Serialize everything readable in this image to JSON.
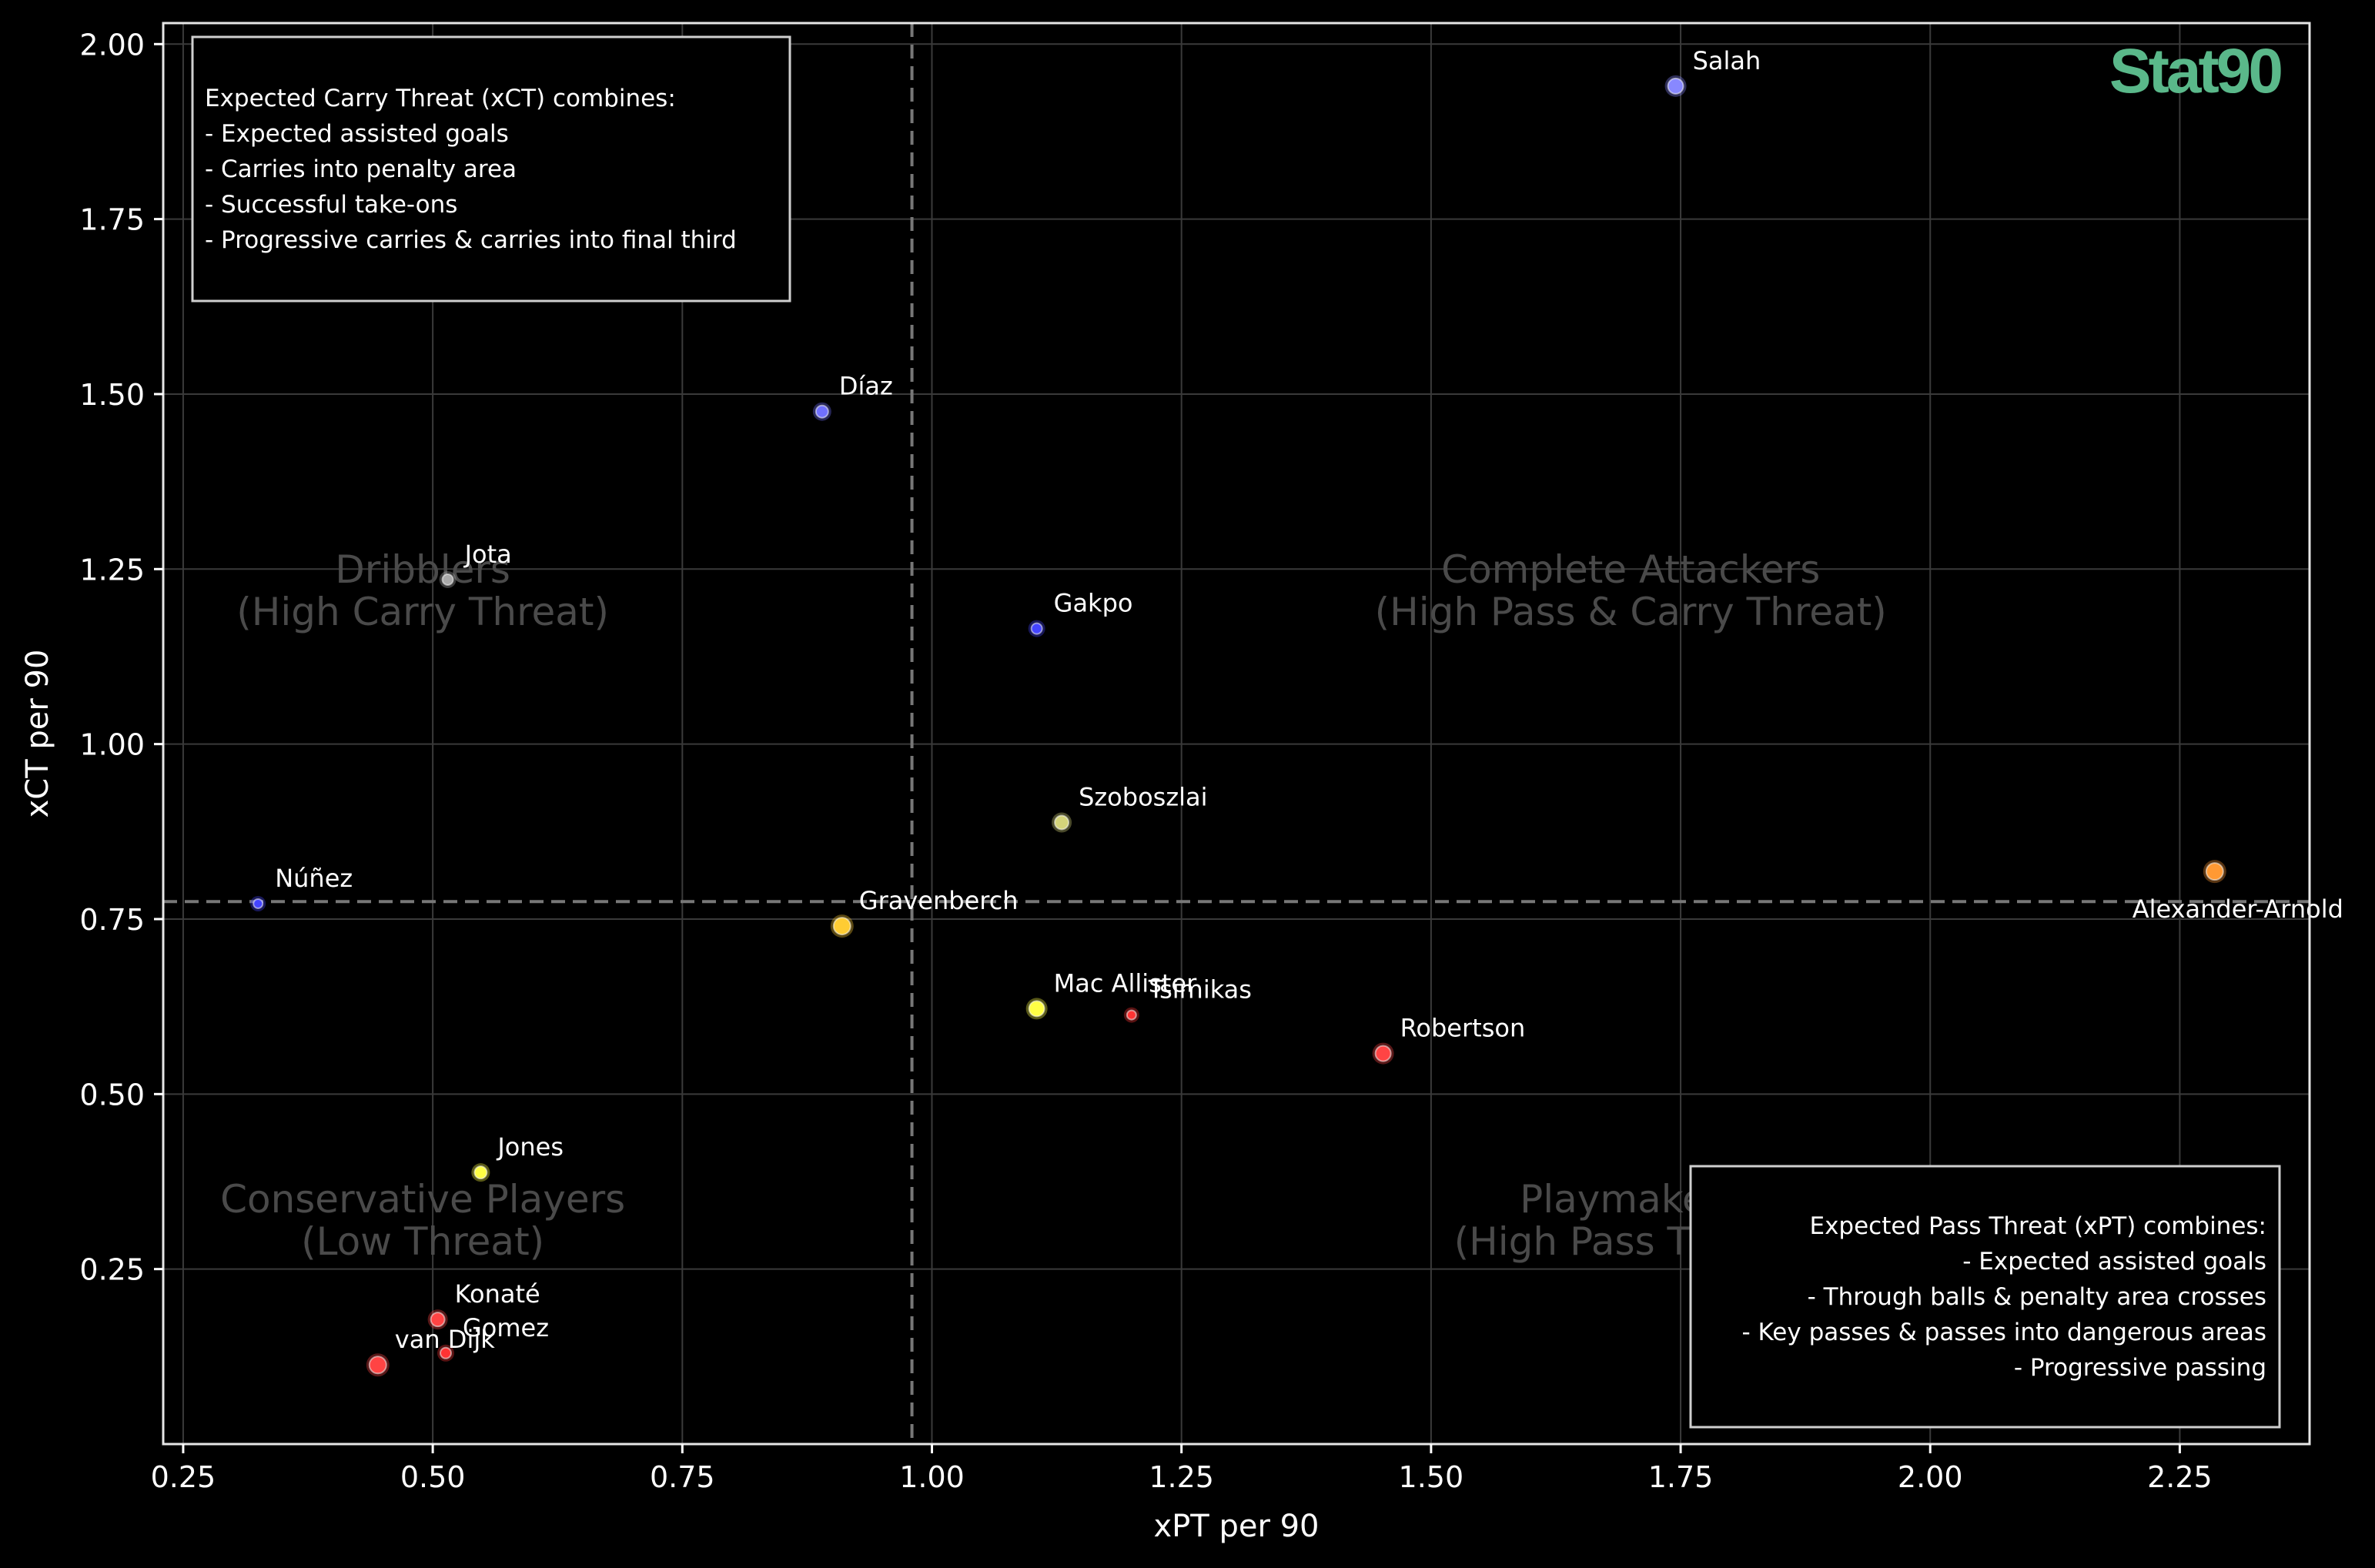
{
  "brand": "Stat90",
  "chart_data": {
    "type": "scatter",
    "xlabel": "xPT per 90",
    "ylabel": "xCT per 90",
    "xlim": [
      0.23,
      2.38
    ],
    "ylim": [
      0.0,
      2.03
    ],
    "xticks": [
      "0.25",
      "0.50",
      "0.75",
      "1.00",
      "1.25",
      "1.50",
      "1.75",
      "2.00",
      "2.25"
    ],
    "yticks": [
      "0.25",
      "0.50",
      "0.75",
      "1.00",
      "1.25",
      "1.50",
      "1.75",
      "2.00"
    ],
    "grid": true,
    "reference_lines": {
      "x": 0.98,
      "y": 0.775
    },
    "quadrants": [
      {
        "label": [
          "Dribblers",
          "(High Carry Threat)"
        ],
        "x": 0.49,
        "y": 1.2
      },
      {
        "label": [
          "Complete Attackers",
          "(High Pass & Carry Threat)"
        ],
        "x": 1.7,
        "y": 1.2
      },
      {
        "label": [
          "Conservative Players",
          "(Low Threat)"
        ],
        "x": 0.49,
        "y": 0.3
      },
      {
        "label": [
          "Playmakers",
          "(High Pass Threat)"
        ],
        "x": 1.7,
        "y": 0.3
      }
    ],
    "points": [
      {
        "name": "Salah",
        "x": 1.745,
        "y": 1.94,
        "color": "#8888ff",
        "size": 10
      },
      {
        "name": "Díaz",
        "x": 0.89,
        "y": 1.475,
        "color": "#7070ff",
        "size": 8
      },
      {
        "name": "Jota",
        "x": 0.515,
        "y": 1.235,
        "color": "#aaaaaa",
        "size": 7
      },
      {
        "name": "Gakpo",
        "x": 1.105,
        "y": 1.165,
        "color": "#4444ff",
        "size": 7
      },
      {
        "name": "Szoboszlai",
        "x": 1.13,
        "y": 0.888,
        "color": "#d4d47a",
        "size": 9
      },
      {
        "name": "Núñez",
        "x": 0.325,
        "y": 0.772,
        "color": "#4444ff",
        "size": 6
      },
      {
        "name": "Alexander-Arnold",
        "x": 2.285,
        "y": 0.818,
        "color": "#ff9933",
        "size": 11
      },
      {
        "name": "Gravenberch",
        "x": 0.91,
        "y": 0.74,
        "color": "#ffcc33",
        "size": 11
      },
      {
        "name": "Mac Allister",
        "x": 1.105,
        "y": 0.622,
        "color": "#ffff44",
        "size": 10
      },
      {
        "name": "Tsimikas",
        "x": 1.2,
        "y": 0.613,
        "color": "#ff3333",
        "size": 6
      },
      {
        "name": "Robertson",
        "x": 1.452,
        "y": 0.558,
        "color": "#ff4444",
        "size": 10
      },
      {
        "name": "Jones",
        "x": 0.548,
        "y": 0.388,
        "color": "#ffff44",
        "size": 8
      },
      {
        "name": "Konaté",
        "x": 0.505,
        "y": 0.178,
        "color": "#ff4444",
        "size": 9
      },
      {
        "name": "Gomez",
        "x": 0.513,
        "y": 0.13,
        "color": "#ff3333",
        "size": 7
      },
      {
        "name": "van Dijk",
        "x": 0.445,
        "y": 0.113,
        "color": "#ff4444",
        "size": 11
      }
    ],
    "annotations": {
      "top_left": [
        "Expected Carry Threat (xCT) combines:",
        "- Expected assisted goals",
        "- Carries into penalty area",
        "- Successful take-ons",
        "- Progressive carries & carries into final third"
      ],
      "bottom_right": [
        "Expected Pass Threat (xPT) combines:",
        "- Expected assisted goals",
        "- Through balls & penalty area crosses",
        "- Key passes & passes into dangerous areas",
        "- Progressive passing"
      ]
    }
  }
}
